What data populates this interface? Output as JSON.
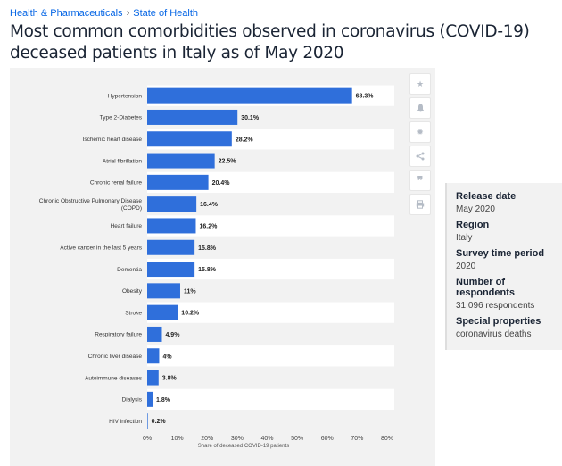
{
  "breadcrumb": {
    "category": "Health & Pharmaceuticals",
    "separator": "›",
    "topic": "State of Health"
  },
  "title": "Most common comorbidities observed in coronavirus (COVID-19) deceased patients in Italy as of May 2020",
  "toolbar": {
    "icons": [
      "star-icon",
      "bell-icon",
      "gear-icon",
      "share-icon",
      "quote-icon",
      "print-icon"
    ]
  },
  "info": {
    "release_label": "Release date",
    "release_value": "May 2020",
    "region_label": "Region",
    "region_value": "Italy",
    "period_label": "Survey time period",
    "period_value": "2020",
    "respondents_label": "Number of respondents",
    "respondents_value": "31,096 respondents",
    "special_label": "Special properties",
    "special_value": "coronavirus deaths"
  },
  "colors": {
    "bar": "#2f6fdb",
    "stripe": "#ffffff",
    "background": "#f2f2f2"
  },
  "chart_data": {
    "type": "bar",
    "orientation": "horizontal",
    "categories": [
      "Hypertension",
      "Type 2-Diabetes",
      "Ischemic heart disease",
      "Atrial fibrillation",
      "Chronic renal failure",
      "Chronic Obstructive Pulmonary Disease (COPD)",
      "Heart failure",
      "Active cancer in the last 5 years",
      "Dementia",
      "Obesity",
      "Stroke",
      "Respiratory failure",
      "Chronic liver disease",
      "Autoimmune diseases",
      "Dialysis",
      "HIV infection"
    ],
    "category_lines": [
      [
        "Hypertension"
      ],
      [
        "Type 2-Diabetes"
      ],
      [
        "Ischemic heart disease"
      ],
      [
        "Atrial fibrillation"
      ],
      [
        "Chronic renal failure"
      ],
      [
        "Chronic Obstructive Pulmonary Disease",
        "(COPD)"
      ],
      [
        "Heart failure"
      ],
      [
        "Active cancer in the last 5 years"
      ],
      [
        "Dementia"
      ],
      [
        "Obesity"
      ],
      [
        "Stroke"
      ],
      [
        "Respiratory failure"
      ],
      [
        "Chronic liver disease"
      ],
      [
        "Autoimmune diseases"
      ],
      [
        "Dialysis"
      ],
      [
        "HIV infection"
      ]
    ],
    "values": [
      68.3,
      30.1,
      28.2,
      22.5,
      20.4,
      16.4,
      16.2,
      15.8,
      15.8,
      11,
      10.2,
      4.9,
      4,
      3.8,
      1.8,
      0.2
    ],
    "value_labels": [
      "68.3%",
      "30.1%",
      "28.2%",
      "22.5%",
      "20.4%",
      "16.4%",
      "16.2%",
      "15.8%",
      "15.8%",
      "11%",
      "10.2%",
      "4.9%",
      "4%",
      "3.8%",
      "1.8%",
      "0.2%"
    ],
    "xlim": [
      0,
      80
    ],
    "xticks": [
      0,
      10,
      20,
      30,
      40,
      50,
      60,
      70,
      80
    ],
    "xtick_labels": [
      "0%",
      "10%",
      "20%",
      "30%",
      "40%",
      "50%",
      "60%",
      "70%",
      "80%"
    ],
    "xlabel": "Share of deceased COVID-19 patients",
    "ylabel": "",
    "title": ""
  }
}
